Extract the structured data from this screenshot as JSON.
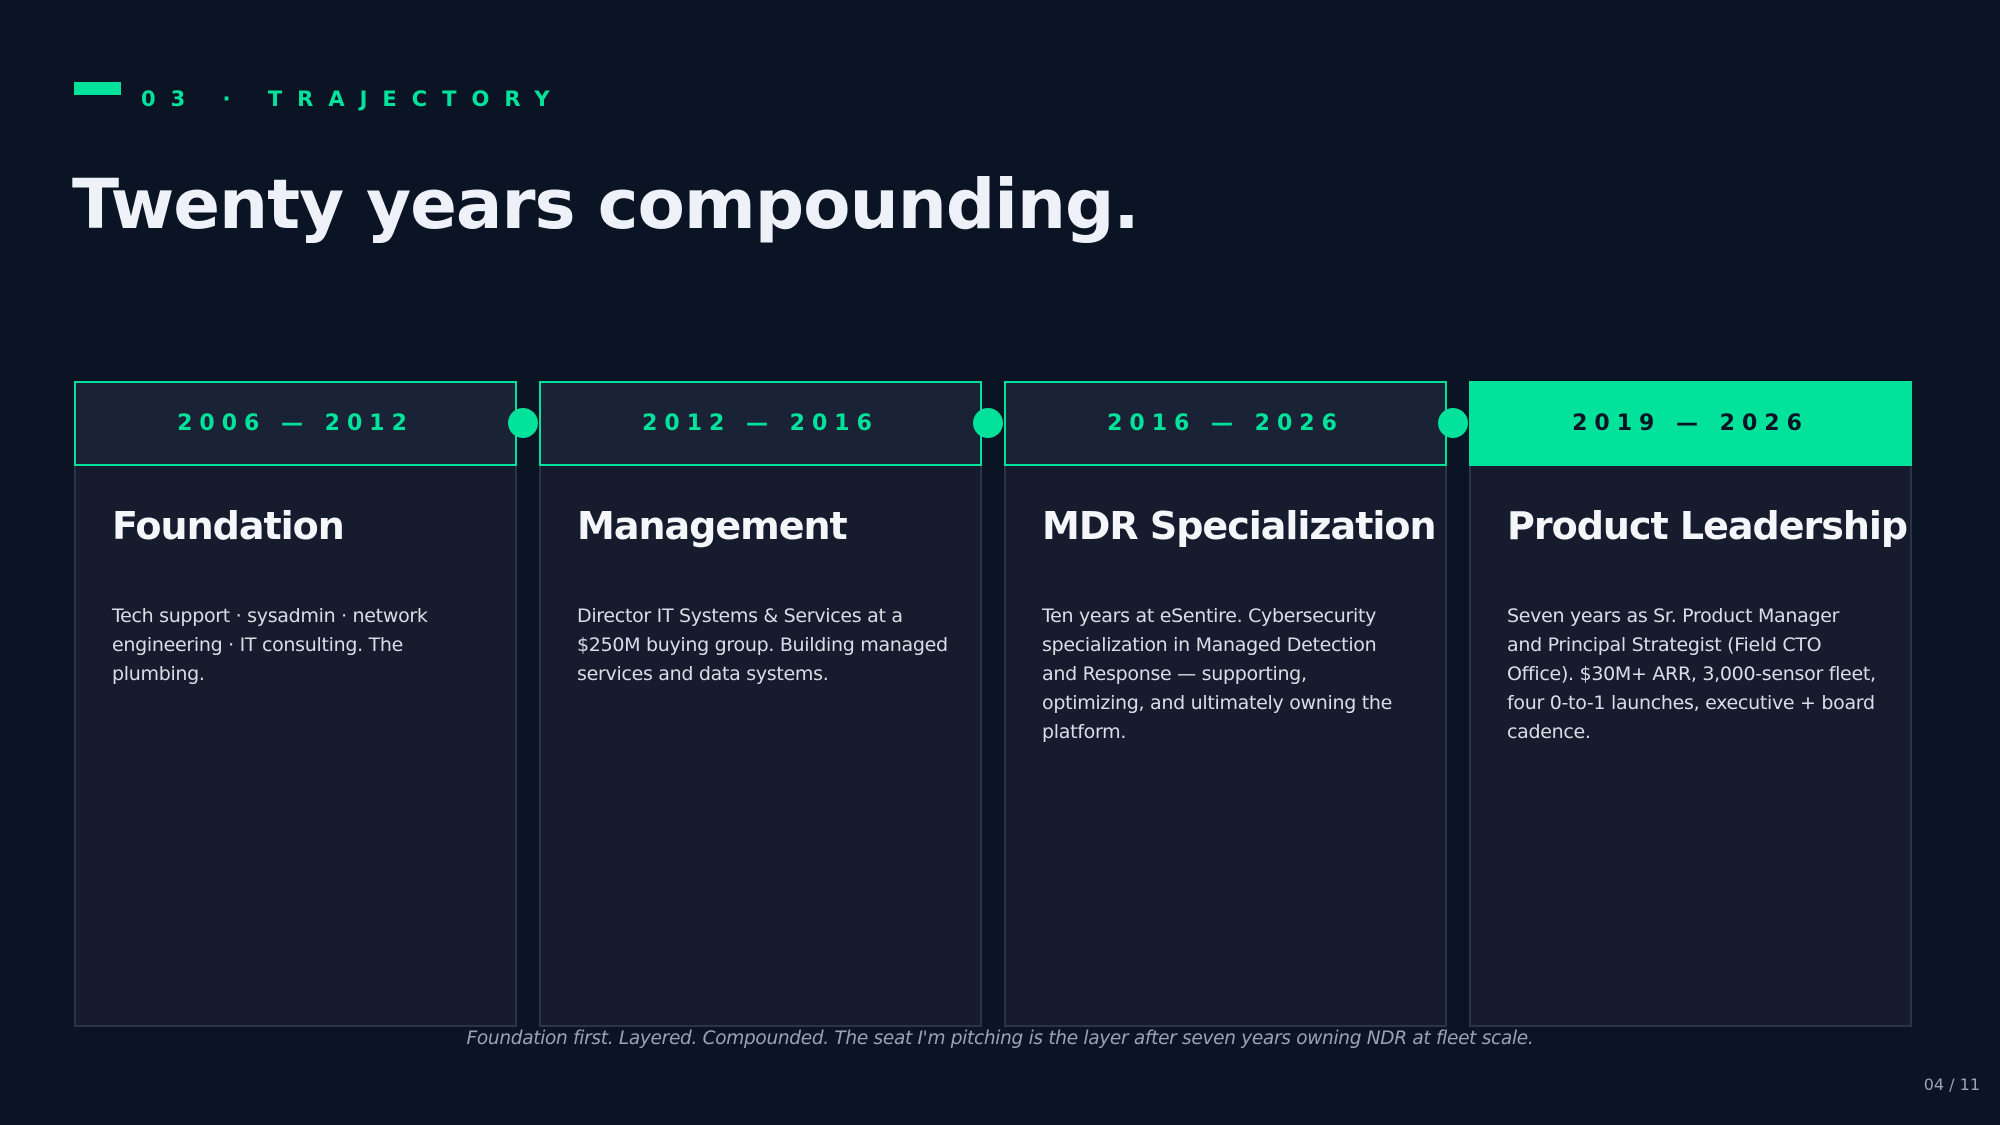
{
  "header": {
    "kicker": "03 · TRAJECTORY",
    "title": "Twenty years compounding."
  },
  "phases": [
    {
      "years": "2006 — 2012",
      "title": "Foundation",
      "body": "Tech support · sysadmin · network engineering · IT consulting. The plumbing."
    },
    {
      "years": "2012 — 2016",
      "title": "Management",
      "body": "Director IT Systems & Services at a $250M buying group. Building managed services and data systems."
    },
    {
      "years": "2016 — 2026",
      "title": "MDR Specialization",
      "body": "Ten years at eSentire. Cybersecurity specialization in Managed Detection and Response — supporting, optimizing, and ultimately owning the platform."
    },
    {
      "years": "2019 — 2026",
      "title": "Product Leadership",
      "body": "Seven years as Sr. Product Manager and Principal Strategist (Field CTO Office). $30M+ ARR, 3,000-sensor fleet, four 0-to-1 launches, executive + board cadence."
    }
  ],
  "footnote": "Foundation first. Layered. Compounded. The seat I'm pitching is the layer after seven years owning NDR at fleet scale.",
  "page_number": "04 / 11",
  "colors": {
    "accent": "#03e29b",
    "background": "#0b1424",
    "card": "#161c2e"
  }
}
